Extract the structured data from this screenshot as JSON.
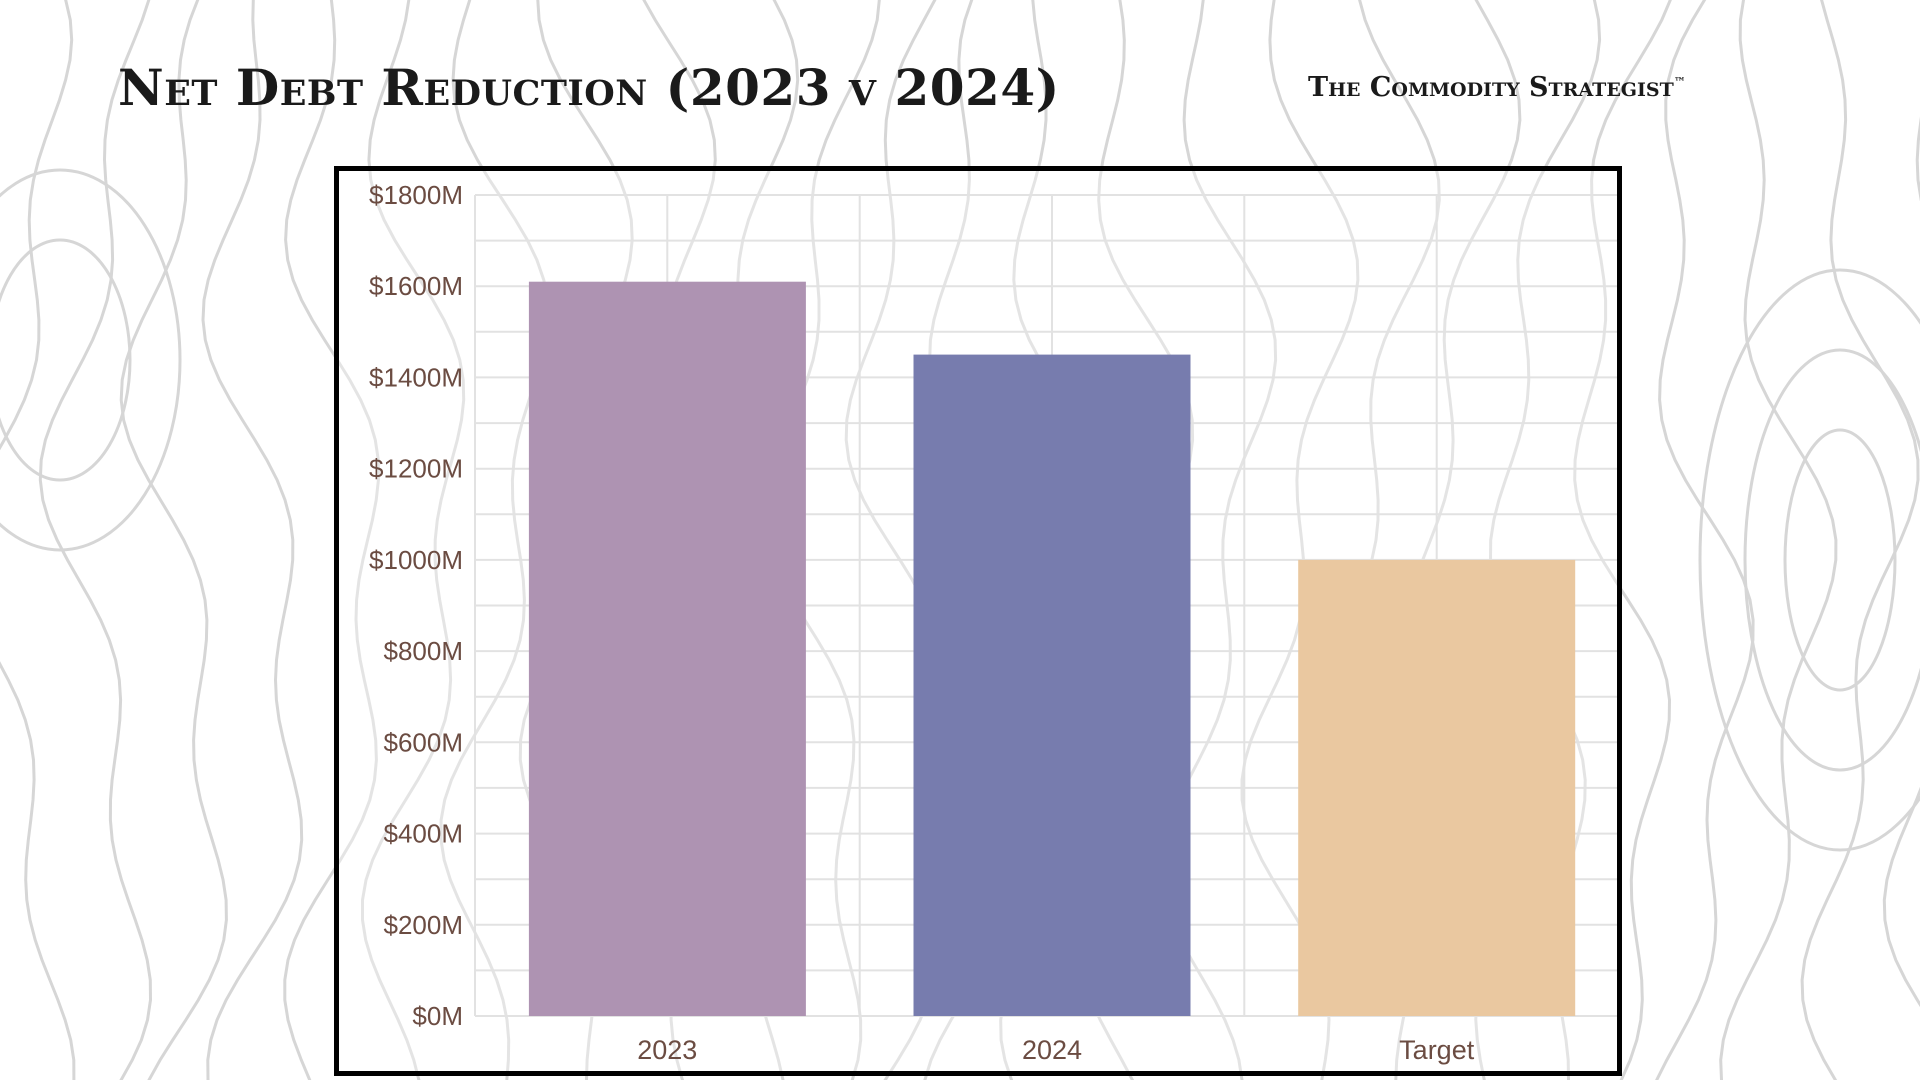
{
  "header": {
    "title": "Net Debt Reduction (2023 v 2024)",
    "brand": "The Commodity Strategist",
    "brand_mark": "™"
  },
  "colors": {
    "contour": "#d6d6d6",
    "grid": "#e2e2e2",
    "axis_text": "#6b4c42",
    "frame": "#000000"
  },
  "chart_data": {
    "type": "bar",
    "categories": [
      "2023",
      "2024",
      "Target"
    ],
    "values": [
      1610,
      1450,
      1000
    ],
    "colors": [
      "#ae93b2",
      "#777cae",
      "#eac8a0"
    ],
    "ylim": [
      0,
      1800
    ],
    "yticks": [
      0,
      200,
      400,
      600,
      800,
      1000,
      1200,
      1400,
      1600,
      1800
    ],
    "ytick_labels": [
      "$0M",
      "$200M",
      "$400M",
      "$600M",
      "$800M",
      "$1000M",
      "$1200M",
      "$1400M",
      "$1600M",
      "$1800M"
    ],
    "grid": true,
    "xlabel": "",
    "ylabel": ""
  }
}
